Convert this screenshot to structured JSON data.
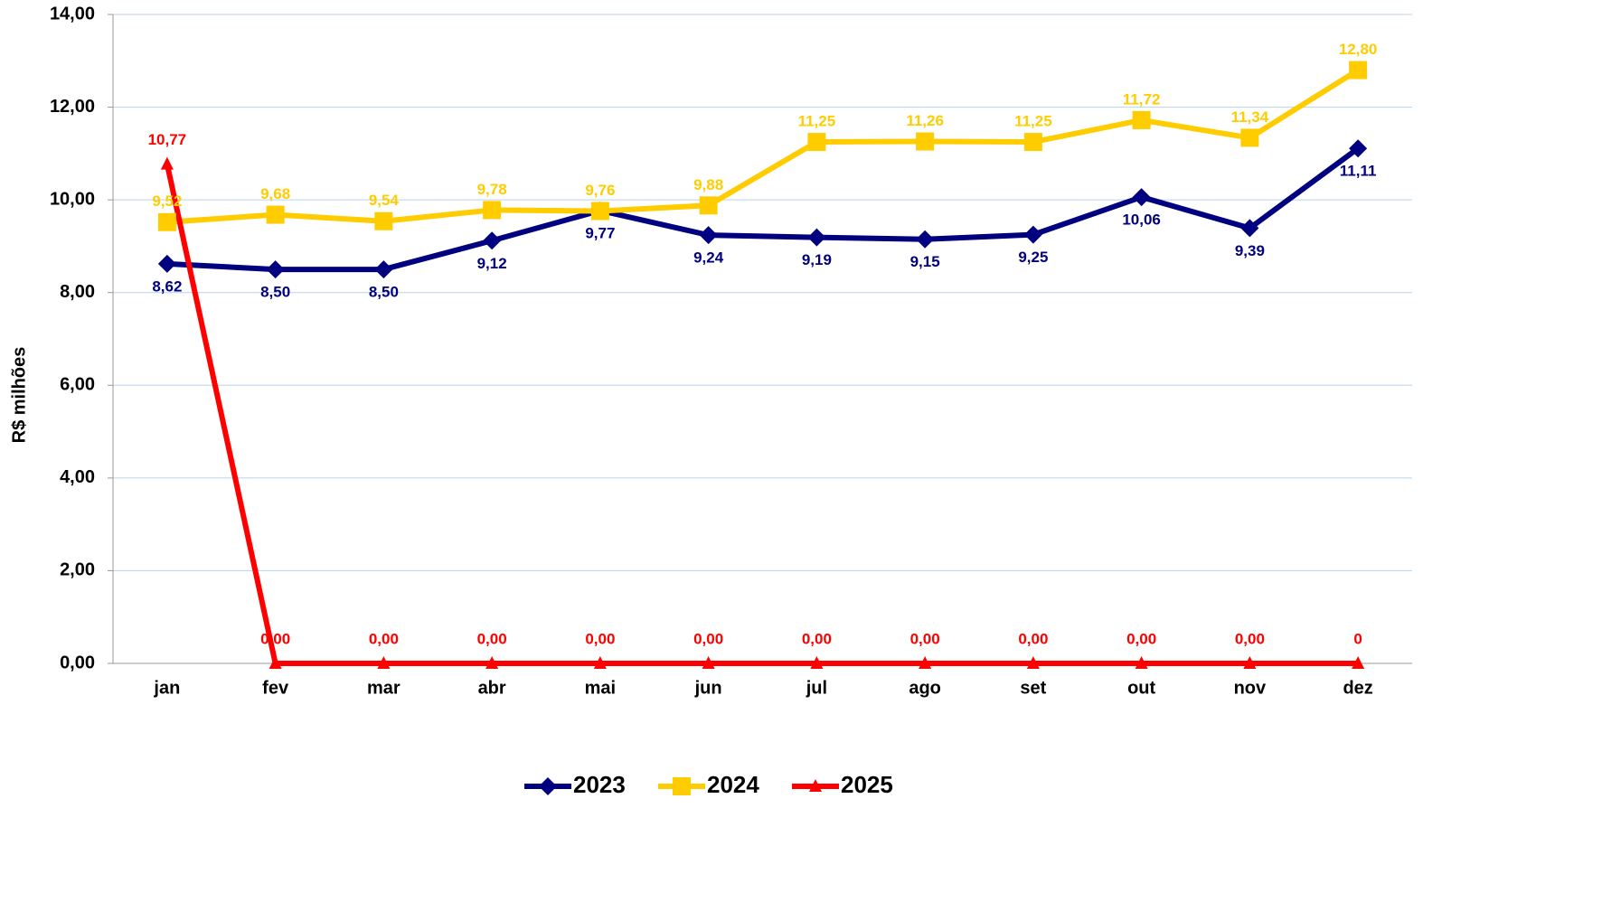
{
  "chart_data": {
    "type": "line",
    "y_label": "R$ milhões",
    "categories": [
      "jan",
      "fev",
      "mar",
      "abr",
      "mai",
      "jun",
      "jul",
      "ago",
      "set",
      "out",
      "nov",
      "dez"
    ],
    "series": [
      {
        "name": "2023",
        "color": "#000080",
        "marker": "diamond",
        "values": [
          8.62,
          8.5,
          8.5,
          9.12,
          9.77,
          9.24,
          9.19,
          9.15,
          9.25,
          10.06,
          9.39,
          11.11
        ],
        "value_labels": [
          "8,62",
          "8,50",
          "8,50",
          "9,12",
          "9,77",
          "9,24",
          "9,19",
          "9,15",
          "9,25",
          "10,06",
          "9,39",
          "11,11"
        ]
      },
      {
        "name": "2024",
        "color": "#ffcc00",
        "marker": "square",
        "values": [
          9.52,
          9.68,
          9.54,
          9.78,
          9.76,
          9.88,
          11.25,
          11.26,
          11.25,
          11.72,
          11.34,
          12.8
        ],
        "value_labels": [
          "9,52",
          "9,68",
          "9,54",
          "9,78",
          "9,76",
          "9,88",
          "11,25",
          "11,26",
          "11,25",
          "11,72",
          "11,34",
          "12,80"
        ]
      },
      {
        "name": "2025",
        "color": "#ff0000",
        "marker": "triangle",
        "values": [
          10.77,
          0,
          0,
          0,
          0,
          0,
          0,
          0,
          0,
          0,
          0,
          0
        ],
        "value_labels": [
          "10,77",
          "0,00",
          "0,00",
          "0,00",
          "0,00",
          "0,00",
          "0,00",
          "0,00",
          "0,00",
          "0,00",
          "0,00",
          "0"
        ]
      }
    ],
    "ylim": [
      0,
      14
    ],
    "yticks": [
      {
        "value": 0,
        "label": "0,00"
      },
      {
        "value": 2,
        "label": "2,00"
      },
      {
        "value": 4,
        "label": "4,00"
      },
      {
        "value": 6,
        "label": "6,00"
      },
      {
        "value": 8,
        "label": "8,00"
      },
      {
        "value": 10,
        "label": "10,00"
      },
      {
        "value": 12,
        "label": "12,00"
      },
      {
        "value": 14,
        "label": "14,00"
      }
    ],
    "grid": true,
    "legend": "bottom"
  }
}
